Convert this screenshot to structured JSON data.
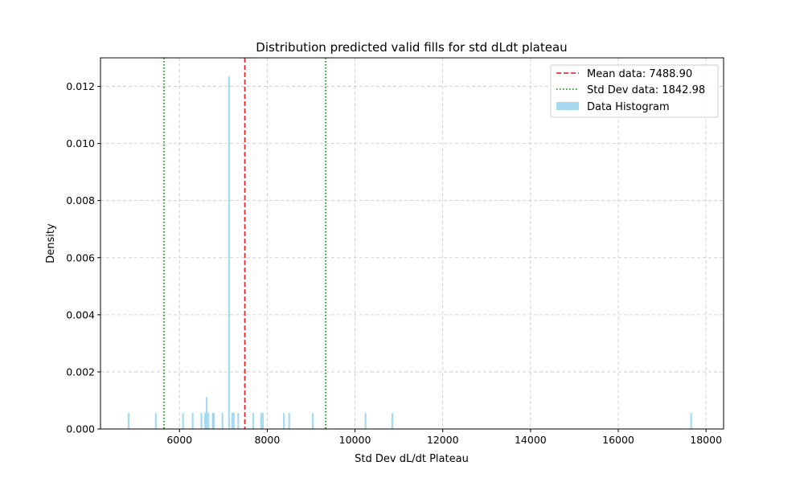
{
  "chart_data": {
    "type": "bar",
    "title": "Distribution predicted valid fills for std dLdt plateau",
    "xlabel": "Std Dev dL/dt Plateau",
    "ylabel": "Density",
    "xlim": [
      4200,
      18400
    ],
    "ylim": [
      0,
      0.013
    ],
    "xticks": [
      6000,
      8000,
      10000,
      12000,
      14000,
      16000,
      18000
    ],
    "xtick_labels": [
      "6000",
      "8000",
      "10000",
      "12000",
      "14000",
      "16000",
      "18000"
    ],
    "yticks": [
      0,
      0.002,
      0.004,
      0.006,
      0.008,
      0.01,
      0.012
    ],
    "ytick_labels": [
      "0.000",
      "0.002",
      "0.004",
      "0.006",
      "0.008",
      "0.010",
      "0.012"
    ],
    "grid": true,
    "legend_position": "top-right",
    "histogram": {
      "name": "Data Histogram",
      "color": "#87ceeb",
      "bin_width": 40,
      "bins": [
        {
          "x": 4840,
          "density": 0.00056
        },
        {
          "x": 5460,
          "density": 0.00056
        },
        {
          "x": 6080,
          "density": 0.00056
        },
        {
          "x": 6300,
          "density": 0.00056
        },
        {
          "x": 6500,
          "density": 0.00056
        },
        {
          "x": 6580,
          "density": 0.00056
        },
        {
          "x": 6620,
          "density": 0.00112
        },
        {
          "x": 6660,
          "density": 0.00056
        },
        {
          "x": 6760,
          "density": 0.00056
        },
        {
          "x": 6780,
          "density": 0.00056
        },
        {
          "x": 6980,
          "density": 0.00056
        },
        {
          "x": 7130,
          "density": 0.01235
        },
        {
          "x": 7200,
          "density": 0.00056
        },
        {
          "x": 7240,
          "density": 0.00056
        },
        {
          "x": 7340,
          "density": 0.00056
        },
        {
          "x": 7680,
          "density": 0.00056
        },
        {
          "x": 7860,
          "density": 0.00056
        },
        {
          "x": 7900,
          "density": 0.00056
        },
        {
          "x": 8380,
          "density": 0.00056
        },
        {
          "x": 8500,
          "density": 0.00056
        },
        {
          "x": 9040,
          "density": 0.00056
        },
        {
          "x": 10240,
          "density": 0.00056
        },
        {
          "x": 10850,
          "density": 0.00056
        },
        {
          "x": 17660,
          "density": 0.00056
        }
      ]
    },
    "mean_line": {
      "label": "Mean data: 7488.90",
      "x": 7488.9,
      "color": "#e41a1c",
      "style": "dashed"
    },
    "std_lines": {
      "label": "Std Dev data: 1842.98",
      "x": [
        5645.92,
        9331.88
      ],
      "color": "#008000",
      "style": "dotted"
    }
  }
}
